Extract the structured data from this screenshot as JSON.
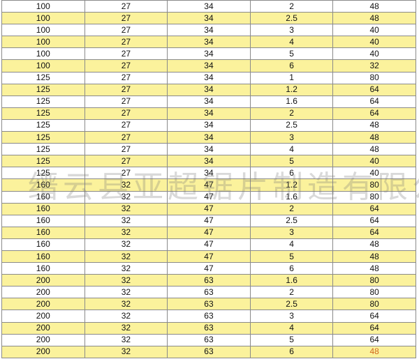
{
  "colors": {
    "stripe": "#fbf29c",
    "white": "#ffffff",
    "highlight": "#d2691e"
  },
  "watermark": "缙云县亚超锯片制造有限公司",
  "rows": [
    [
      "100",
      "27",
      "34",
      "2",
      "48"
    ],
    [
      "100",
      "27",
      "34",
      "2.5",
      "48"
    ],
    [
      "100",
      "27",
      "34",
      "3",
      "40"
    ],
    [
      "100",
      "27",
      "34",
      "4",
      "40"
    ],
    [
      "100",
      "27",
      "34",
      "5",
      "40"
    ],
    [
      "100",
      "27",
      "34",
      "6",
      "32"
    ],
    [
      "125",
      "27",
      "34",
      "1",
      "80"
    ],
    [
      "125",
      "27",
      "34",
      "1.2",
      "64"
    ],
    [
      "125",
      "27",
      "34",
      "1.6",
      "64"
    ],
    [
      "125",
      "27",
      "34",
      "2",
      "64"
    ],
    [
      "125",
      "27",
      "34",
      "2.5",
      "48"
    ],
    [
      "125",
      "27",
      "34",
      "3",
      "48"
    ],
    [
      "125",
      "27",
      "34",
      "4",
      "48"
    ],
    [
      "125",
      "27",
      "34",
      "5",
      "40"
    ],
    [
      "125",
      "27",
      "34",
      "6",
      "40"
    ],
    [
      "160",
      "32",
      "47",
      "1.2",
      "80"
    ],
    [
      "160",
      "32",
      "47",
      "1.6",
      "80"
    ],
    [
      "160",
      "32",
      "47",
      "2",
      "64"
    ],
    [
      "160",
      "32",
      "47",
      "2.5",
      "64"
    ],
    [
      "160",
      "32",
      "47",
      "3",
      "64"
    ],
    [
      "160",
      "32",
      "47",
      "4",
      "48"
    ],
    [
      "160",
      "32",
      "47",
      "5",
      "48"
    ],
    [
      "160",
      "32",
      "47",
      "6",
      "48"
    ],
    [
      "200",
      "32",
      "63",
      "1.6",
      "80"
    ],
    [
      "200",
      "32",
      "63",
      "2",
      "80"
    ],
    [
      "200",
      "32",
      "63",
      "2.5",
      "80"
    ],
    [
      "200",
      "32",
      "63",
      "3",
      "64"
    ],
    [
      "200",
      "32",
      "63",
      "4",
      "64"
    ],
    [
      "200",
      "32",
      "63",
      "5",
      "64"
    ],
    [
      "200",
      "32",
      "63",
      "6",
      "48"
    ]
  ]
}
